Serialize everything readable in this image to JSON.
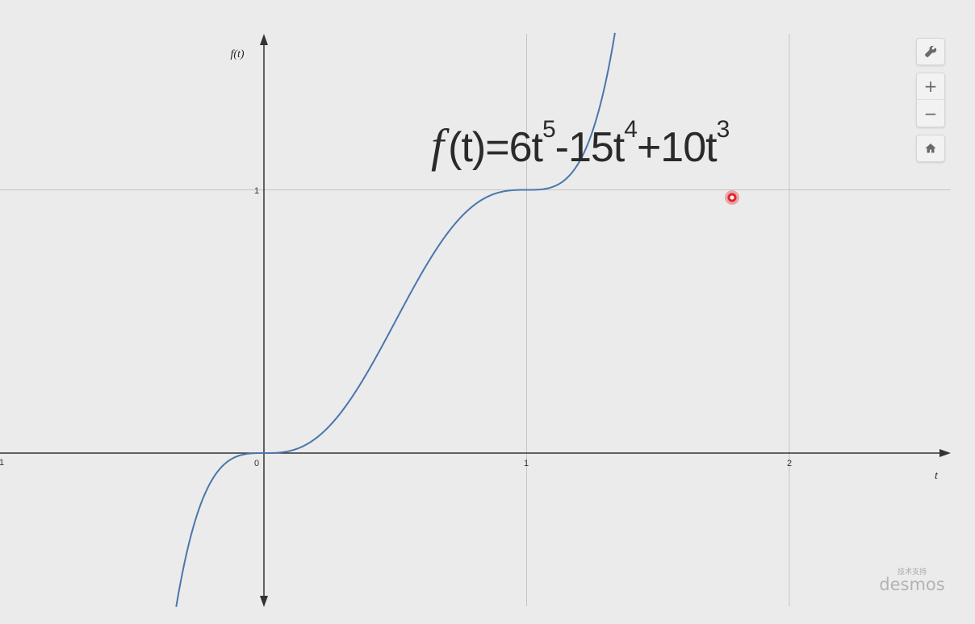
{
  "formula": {
    "f": "f",
    "body": "(t)=6t",
    "exp1": "5",
    "mid1": "-15t",
    "exp2": "4",
    "mid2": "+10t",
    "exp3": "3"
  },
  "axes": {
    "x_name": "t",
    "y_name": "f(t)"
  },
  "ticks": {
    "x": [
      "1",
      "0",
      "1",
      "2"
    ],
    "y": [
      "1"
    ]
  },
  "controls": {
    "settings_icon": "wrench-icon",
    "zoom_in": "+",
    "zoom_out": "−",
    "home_icon": "home-icon"
  },
  "branding": {
    "watermark": "技术支持",
    "logo": "desmos"
  },
  "chart_data": {
    "type": "line",
    "series": [
      {
        "expression": "6t^5-15t^4+10t^3"
      }
    ],
    "xlabel": "t",
    "ylabel": "f(t)",
    "xlim": [
      -1,
      2.6
    ],
    "grid": true,
    "colors": {
      "curve": "#4a76ad",
      "grid": "#c4c4c4",
      "axis": "#333333"
    }
  }
}
